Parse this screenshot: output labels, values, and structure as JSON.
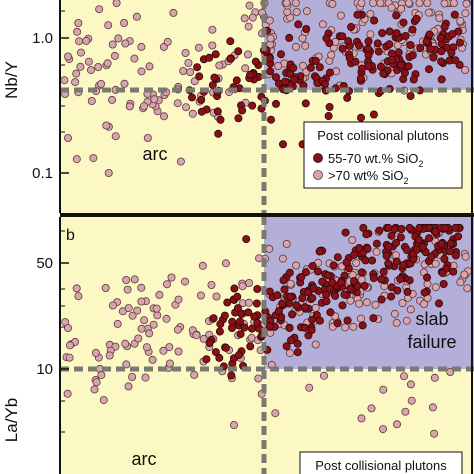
{
  "chart_data": [
    {
      "type": "scatter",
      "panel": "a",
      "ylabel": "Nb/Y",
      "yscale": "log",
      "ylim": [
        0.06,
        2.6
      ],
      "yticks": [
        {
          "value": 1.0,
          "label": "1.0"
        },
        {
          "value": 0.1,
          "label": "0.1"
        }
      ],
      "threshold_y": 0.4,
      "regions": [
        {
          "name": "arc",
          "label": "arc"
        },
        {
          "name": "slab-failure",
          "label": ""
        }
      ],
      "legend": {
        "title": "Post collisional plutons",
        "items": [
          {
            "label_main": "55-70 wt.% SiO",
            "label_sub": "2",
            "color": "#8b0f16"
          },
          {
            "label_main": ">70 wt% SiO",
            "label_sub": "2",
            "color": "#d8a4ad"
          }
        ]
      },
      "series": [
        {
          "name": "55-70 wt.% SiO2",
          "color": "#8b0f16",
          "values_range": "0.22-2.0"
        },
        {
          "name": ">70 wt% SiO2",
          "color": "#d8a4ad",
          "values_range": "0.15-2.5"
        }
      ]
    },
    {
      "type": "scatter",
      "panel": "b",
      "panel_label": "b",
      "ylabel": "La/Yb",
      "yscale": "log",
      "ylim": [
        1.5,
        100
      ],
      "yticks": [
        {
          "value": 50,
          "label": "50"
        },
        {
          "value": 10,
          "label": "10"
        }
      ],
      "threshold_y": 10,
      "regions": [
        {
          "name": "arc",
          "label": "arc"
        },
        {
          "name": "slab-failure",
          "label_line1": "slab",
          "label_line2": "failure"
        }
      ],
      "legend": {
        "title": "Post collisional plutons"
      },
      "series": [
        {
          "name": "55-70 wt.% SiO2",
          "color": "#8b0f16",
          "values_range": "8-80"
        },
        {
          "name": ">70 wt% SiO2",
          "color": "#d8a4ad",
          "values_range": "2-90"
        }
      ]
    }
  ],
  "colors": {
    "arc_region": "#fbf8c4",
    "slab_region": "#b3afd8",
    "threshold_line": "#7a7a72",
    "series_mafic": "#8b0f16",
    "series_felsic": "#d8a4ad"
  }
}
